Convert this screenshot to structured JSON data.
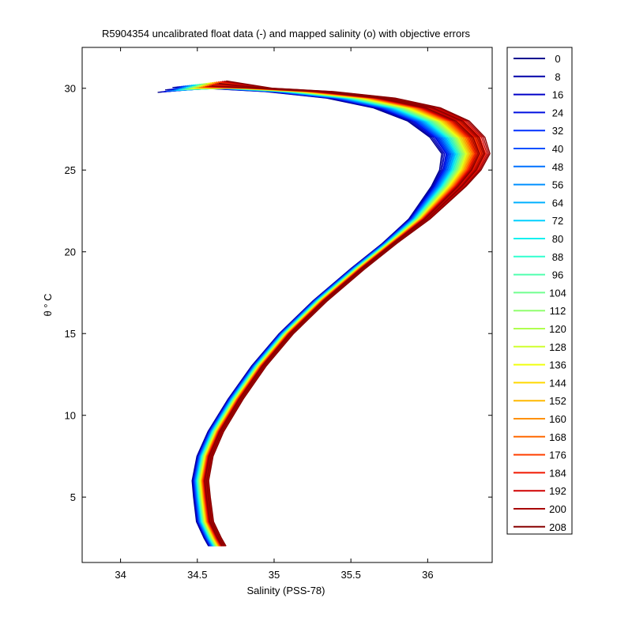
{
  "chart_data": {
    "type": "line",
    "title": "R5904354 uncalibrated float data (-) and mapped salinity (o) with objective errors",
    "xlabel": "Salinity (PSS-78)",
    "ylabel": "θ ° C",
    "xlim": [
      33.75,
      36.42
    ],
    "ylim": [
      1.0,
      32.5
    ],
    "xticks": [
      34,
      34.5,
      35,
      35.5,
      36
    ],
    "xtick_labels": [
      "34",
      "34.5",
      "35",
      "35.5",
      "36"
    ],
    "yticks": [
      5,
      10,
      15,
      20,
      25,
      30
    ],
    "ytick_labels": [
      "5",
      "10",
      "15",
      "20",
      "25",
      "30"
    ],
    "grid": false,
    "legend_position": "outside-right",
    "colormap": "jet",
    "base_profile": {
      "salinity": [
        34.63,
        34.6,
        34.55,
        34.53,
        34.52,
        34.55,
        34.62,
        34.75,
        34.9,
        35.08,
        35.3,
        35.55,
        35.75,
        35.95,
        36.05,
        36.15,
        36.23,
        36.27,
        36.22,
        36.1,
        35.9,
        35.6,
        35.2,
        34.8,
        34.5
      ],
      "temperature": [
        2.0,
        2.5,
        3.5,
        5.0,
        6.0,
        7.5,
        9.0,
        11.0,
        13.0,
        15.0,
        17.0,
        19.0,
        20.5,
        22.0,
        23.0,
        24.0,
        25.0,
        26.0,
        27.0,
        28.0,
        28.8,
        29.4,
        29.8,
        30.0,
        30.1
      ]
    },
    "series": [
      {
        "label": "0",
        "color": "#00008f"
      },
      {
        "label": "8",
        "color": "#0000a8"
      },
      {
        "label": "16",
        "color": "#0000c8"
      },
      {
        "label": "24",
        "color": "#0010e0"
      },
      {
        "label": "32",
        "color": "#0030ff"
      },
      {
        "label": "40",
        "color": "#0050ff"
      },
      {
        "label": "48",
        "color": "#0070ff"
      },
      {
        "label": "56",
        "color": "#0090ff"
      },
      {
        "label": "64",
        "color": "#00b0ff"
      },
      {
        "label": "72",
        "color": "#00d0ff"
      },
      {
        "label": "80",
        "color": "#10f0ef"
      },
      {
        "label": "88",
        "color": "#30ffcf"
      },
      {
        "label": "96",
        "color": "#50ffaf"
      },
      {
        "label": "104",
        "color": "#70ff8f"
      },
      {
        "label": "112",
        "color": "#90ff6f"
      },
      {
        "label": "120",
        "color": "#b0ff4f"
      },
      {
        "label": "128",
        "color": "#d0ff2f"
      },
      {
        "label": "136",
        "color": "#f0ff0f"
      },
      {
        "label": "144",
        "color": "#ffd800"
      },
      {
        "label": "152",
        "color": "#ffb800"
      },
      {
        "label": "160",
        "color": "#ff9000"
      },
      {
        "label": "168",
        "color": "#ff6800"
      },
      {
        "label": "176",
        "color": "#ff4000"
      },
      {
        "label": "184",
        "color": "#f01800"
      },
      {
        "label": "192",
        "color": "#d00000"
      },
      {
        "label": "200",
        "color": "#a80000"
      },
      {
        "label": "208",
        "color": "#880000"
      }
    ]
  }
}
